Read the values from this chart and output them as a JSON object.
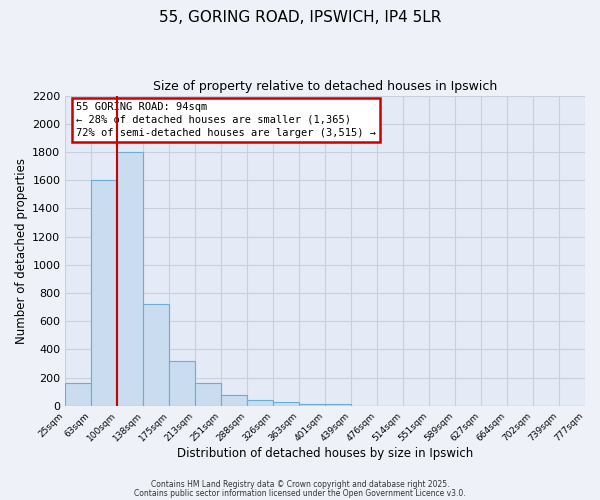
{
  "title": "55, GORING ROAD, IPSWICH, IP4 5LR",
  "subtitle": "Size of property relative to detached houses in Ipswich",
  "bar_values": [
    160,
    1600,
    1800,
    720,
    320,
    160,
    80,
    45,
    30,
    15,
    10,
    0,
    0,
    0,
    0,
    0,
    0,
    0,
    0,
    0
  ],
  "bin_labels": [
    "25sqm",
    "63sqm",
    "100sqm",
    "138sqm",
    "175sqm",
    "213sqm",
    "251sqm",
    "288sqm",
    "326sqm",
    "363sqm",
    "401sqm",
    "439sqm",
    "476sqm",
    "514sqm",
    "551sqm",
    "589sqm",
    "627sqm",
    "664sqm",
    "702sqm",
    "739sqm",
    "777sqm"
  ],
  "bar_color": "#c9dcf0",
  "bar_edge_color": "#6aadd5",
  "vline_x_index": 2,
  "vline_color": "#cc0000",
  "annotation_line1": "55 GORING ROAD: 94sqm",
  "annotation_line2": "← 28% of detached houses are smaller (1,365)",
  "annotation_line3": "72% of semi-detached houses are larger (3,515) →",
  "annotation_box_edge": "#cc0000",
  "annotation_box_face": "#ffffff",
  "xlabel": "Distribution of detached houses by size in Ipswich",
  "ylabel": "Number of detached properties",
  "ylim": [
    0,
    2200
  ],
  "yticks": [
    0,
    200,
    400,
    600,
    800,
    1000,
    1200,
    1400,
    1600,
    1800,
    2000,
    2200
  ],
  "footer_line1": "Contains HM Land Registry data © Crown copyright and database right 2025.",
  "footer_line2": "Contains public sector information licensed under the Open Government Licence v3.0.",
  "bg_color": "#eef2f8",
  "plot_bg_color": "#e4eaf6",
  "grid_color": "#c8d0e0"
}
